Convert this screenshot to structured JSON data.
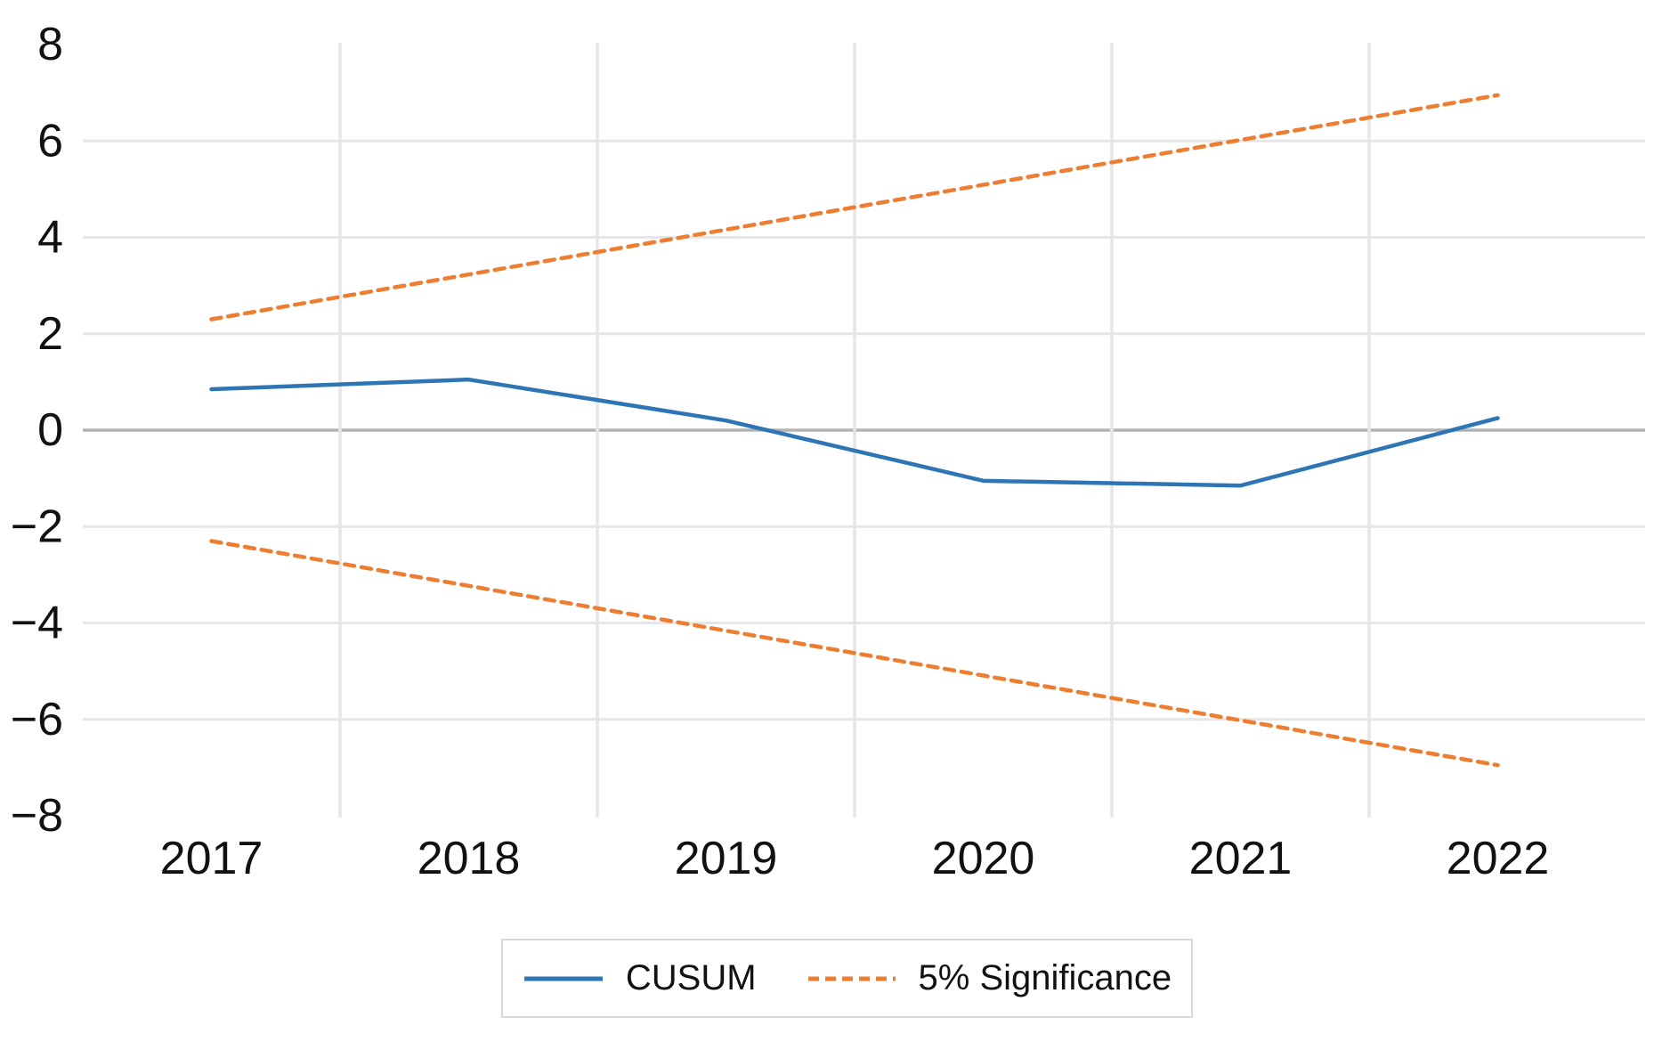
{
  "chart_data": {
    "type": "line",
    "title": "",
    "xlabel": "",
    "ylabel": "",
    "x": [
      2017,
      2018,
      2019,
      2020,
      2021,
      2022
    ],
    "x_tick_labels": [
      "2017",
      "2018",
      "2019",
      "2020",
      "2021",
      "2022"
    ],
    "ylim": [
      -8,
      8
    ],
    "y_ticks": [
      8,
      6,
      4,
      2,
      0,
      -2,
      -4,
      -6,
      -8
    ],
    "y_tick_labels": [
      "8",
      "6",
      "4",
      "2",
      "0",
      "−2",
      "−4",
      "−6",
      "−8"
    ],
    "grid": true,
    "legend_position": "bottom-center",
    "series": [
      {
        "id": "cusum",
        "name": "CUSUM",
        "style": "solid",
        "color": "#2E75B6",
        "values": [
          0.85,
          1.05,
          0.2,
          -1.05,
          -1.15,
          0.25
        ]
      },
      {
        "id": "significance-upper",
        "name": "5% Significance (upper bound)",
        "style": "dashed",
        "color": "#ED7D31",
        "values": [
          2.3,
          3.23,
          4.16,
          5.09,
          6.02,
          6.95
        ]
      },
      {
        "id": "significance-lower",
        "name": "5% Significance (lower bound)",
        "style": "dashed",
        "color": "#ED7D31",
        "values": [
          -2.3,
          -3.23,
          -4.16,
          -5.09,
          -6.02,
          -6.95
        ]
      }
    ],
    "legend": [
      {
        "label": "CUSUM",
        "swatch": "cusum",
        "style": "solid"
      },
      {
        "label": "5% Significance",
        "swatch": "significance",
        "style": "dashed"
      }
    ],
    "colors": {
      "cusum": "#2E75B6",
      "significance": "#ED7D31",
      "gridline": "#e6e6e6",
      "zero_line": "#b3b3b3",
      "tick_text": "#111111",
      "legend_border": "#d9d9d9",
      "background": "#ffffff"
    }
  }
}
